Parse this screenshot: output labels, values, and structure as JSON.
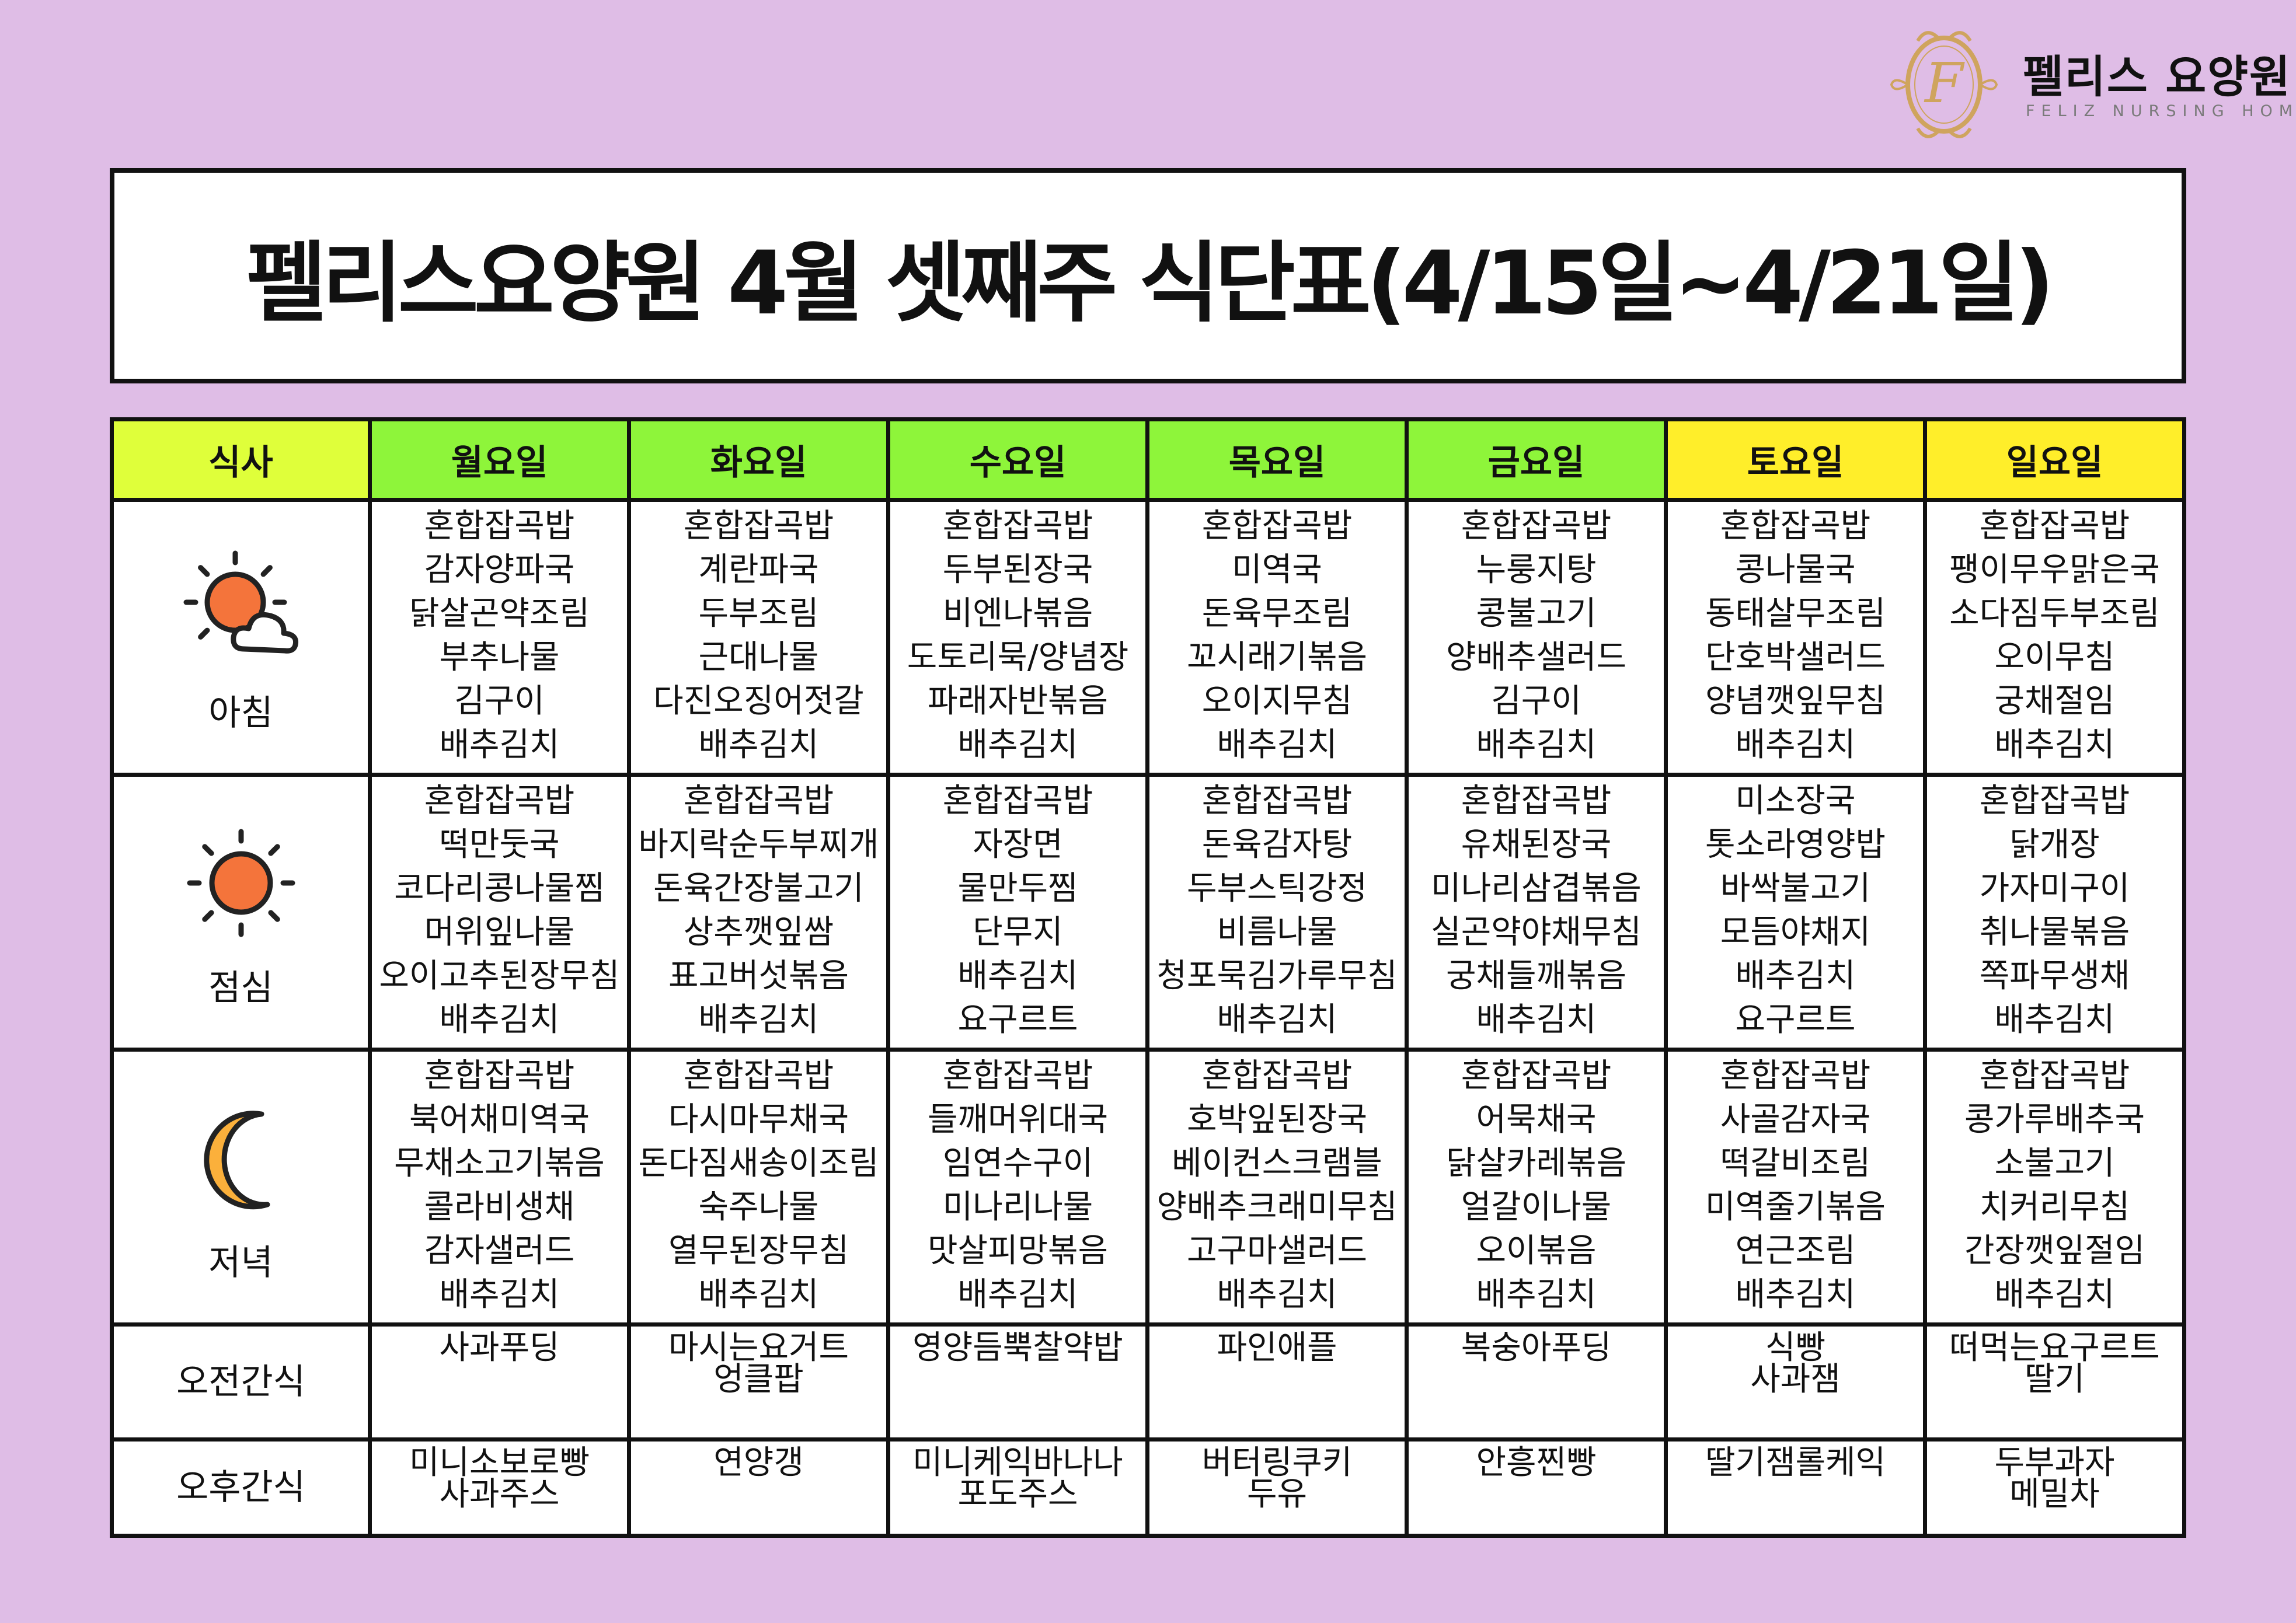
{
  "logo": {
    "name_ko": "펠리스 요양원",
    "name_en": "FELIZ NURSING HOME",
    "color": "#cfa45e"
  },
  "title": "펠리스요양원 4월 셋째주 식단표(4/15일~4/21일)",
  "colors": {
    "background": "#dfbde6",
    "meal_header": "#dfff3a",
    "weekday_header": "#8ef53a",
    "weekend_header": "#ffee2a"
  },
  "header": {
    "meal": "식사",
    "days": [
      "월요일",
      "화요일",
      "수요일",
      "목요일",
      "금요일",
      "토요일",
      "일요일"
    ]
  },
  "rows": [
    {
      "label": "아침",
      "icon": "sun-cloud-icon",
      "cells": [
        [
          "혼합잡곡밥",
          "감자양파국",
          "닭살곤약조림",
          "부추나물",
          "김구이",
          "배추김치"
        ],
        [
          "혼합잡곡밥",
          "계란파국",
          "두부조림",
          "근대나물",
          "다진오징어젓갈",
          "배추김치"
        ],
        [
          "혼합잡곡밥",
          "두부된장국",
          "비엔나볶음",
          "도토리묵/양념장",
          "파래자반볶음",
          "배추김치"
        ],
        [
          "혼합잡곡밥",
          "미역국",
          "돈육무조림",
          "꼬시래기볶음",
          "오이지무침",
          "배추김치"
        ],
        [
          "혼합잡곡밥",
          "누룽지탕",
          "콩불고기",
          "양배추샐러드",
          "김구이",
          "배추김치"
        ],
        [
          "혼합잡곡밥",
          "콩나물국",
          "동태살무조림",
          "단호박샐러드",
          "양념깻잎무침",
          "배추김치"
        ],
        [
          "혼합잡곡밥",
          "팽이무우맑은국",
          "소다짐두부조림",
          "오이무침",
          "궁채절임",
          "배추김치"
        ]
      ]
    },
    {
      "label": "점심",
      "icon": "sun-icon",
      "cells": [
        [
          "혼합잡곡밥",
          "떡만둣국",
          "코다리콩나물찜",
          "머위잎나물",
          "오이고추된장무침",
          "배추김치"
        ],
        [
          "혼합잡곡밥",
          "바지락순두부찌개",
          "돈육간장불고기",
          "상추깻잎쌈",
          "표고버섯볶음",
          "배추김치"
        ],
        [
          "혼합잡곡밥",
          "자장면",
          "물만두찜",
          "단무지",
          "배추김치",
          "요구르트"
        ],
        [
          "혼합잡곡밥",
          "돈육감자탕",
          "두부스틱강정",
          "비름나물",
          "청포묵김가루무침",
          "배추김치"
        ],
        [
          "혼합잡곡밥",
          "유채된장국",
          "미나리삼겹볶음",
          "실곤약야채무침",
          "궁채들깨볶음",
          "배추김치"
        ],
        [
          "미소장국",
          "톳소라영양밥",
          "바싹불고기",
          "모듬야채지",
          "배추김치",
          "요구르트"
        ],
        [
          "혼합잡곡밥",
          "닭개장",
          "가자미구이",
          "취나물볶음",
          "쪽파무생채",
          "배추김치"
        ]
      ]
    },
    {
      "label": "저녁",
      "icon": "moon-icon",
      "cells": [
        [
          "혼합잡곡밥",
          "북어채미역국",
          "무채소고기볶음",
          "콜라비생채",
          "감자샐러드",
          "배추김치"
        ],
        [
          "혼합잡곡밥",
          "다시마무채국",
          "돈다짐새송이조림",
          "숙주나물",
          "열무된장무침",
          "배추김치"
        ],
        [
          "혼합잡곡밥",
          "들깨머위대국",
          "임연수구이",
          "미나리나물",
          "맛살피망볶음",
          "배추김치"
        ],
        [
          "혼합잡곡밥",
          "호박잎된장국",
          "베이컨스크램블",
          "양배추크래미무침",
          "고구마샐러드",
          "배추김치"
        ],
        [
          "혼합잡곡밥",
          "어묵채국",
          "닭살카레볶음",
          "얼갈이나물",
          "오이볶음",
          "배추김치"
        ],
        [
          "혼합잡곡밥",
          "사골감자국",
          "떡갈비조림",
          "미역줄기볶음",
          "연근조림",
          "배추김치"
        ],
        [
          "혼합잡곡밥",
          "콩가루배추국",
          "소불고기",
          "치커리무침",
          "간장깻잎절임",
          "배추김치"
        ]
      ]
    },
    {
      "label": "오전간식",
      "cells": [
        [
          "사과푸딩"
        ],
        [
          "마시는요거트",
          "엉클팝"
        ],
        [
          "영양듬뿍찰약밥"
        ],
        [
          "파인애플"
        ],
        [
          "복숭아푸딩"
        ],
        [
          "식빵",
          "사과잼"
        ],
        [
          "떠먹는요구르트",
          "딸기"
        ]
      ]
    },
    {
      "label": "오후간식",
      "cells": [
        [
          "미니소보로빵",
          "사과주스"
        ],
        [
          "연양갱"
        ],
        [
          "미니케익바나나",
          "포도주스"
        ],
        [
          "버터링쿠키",
          "두유"
        ],
        [
          "안흥찐빵"
        ],
        [
          "딸기잼롤케익"
        ],
        [
          "두부과자",
          "메밀차"
        ]
      ]
    }
  ]
}
